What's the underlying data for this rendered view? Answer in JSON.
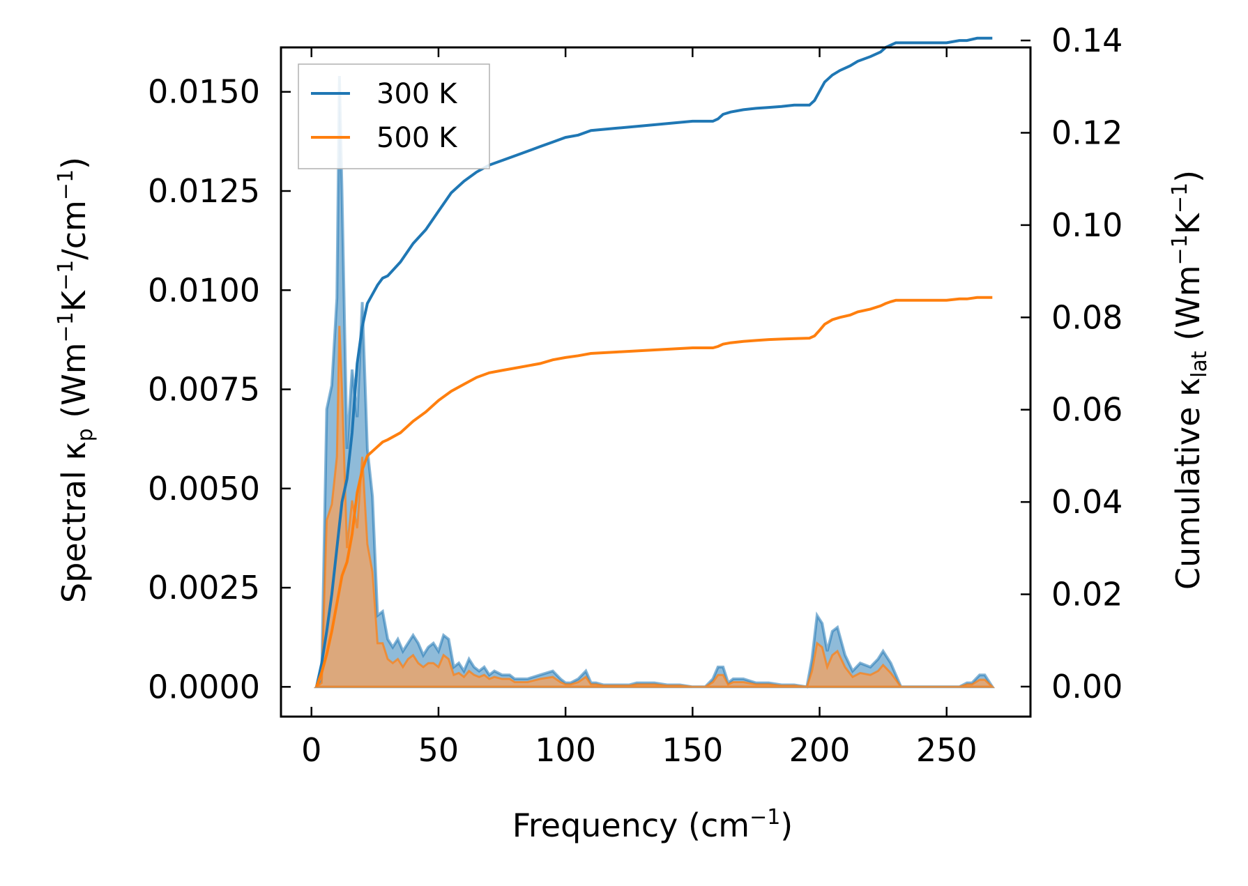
{
  "chart_data": {
    "type": "line",
    "xlabel": {
      "main": "Frequency (cm",
      "sup": "−1",
      "tail": ")"
    },
    "ylabel_left": {
      "main": "Spectral κ",
      "sub": "p",
      "a": " (Wm",
      "s1": "−1",
      "b": "K",
      "s2": "−1",
      "c": "/cm",
      "s3": "−1",
      "d": ")"
    },
    "ylabel_right": {
      "main": "Cumulative κ",
      "sub": "lat",
      "a": " (Wm",
      "s1": "−1",
      "b": "K",
      "s2": "−1",
      "c": ")"
    },
    "xlim": [
      -12,
      283
    ],
    "ylim_left": [
      -0.00075,
      0.01612
    ],
    "ylim_right": [
      -0.0065,
      0.1385
    ],
    "xticks": [
      0,
      50,
      100,
      150,
      200,
      250
    ],
    "xtick_labels": [
      "0",
      "50",
      "100",
      "150",
      "200",
      "250"
    ],
    "yticks_left": [
      0,
      0.0025,
      0.005,
      0.0075,
      0.01,
      0.0125,
      0.015
    ],
    "ytick_labels_left": [
      "0.0000",
      "0.0025",
      "0.0050",
      "0.0075",
      "0.0100",
      "0.0125",
      "0.0150"
    ],
    "yticks_right": [
      0,
      0.02,
      0.04,
      0.06,
      0.08,
      0.1,
      0.12,
      0.14
    ],
    "ytick_labels_right": [
      "0.00",
      "0.02",
      "0.04",
      "0.06",
      "0.08",
      "0.10",
      "0.12",
      "0.14"
    ],
    "legend": [
      "300 K",
      "500 K"
    ],
    "colors": {
      "blue": "#1f77b4",
      "orange": "#ff7f0e",
      "blue_fill": "#1f77b4",
      "orange_fill": "#f5a15c"
    },
    "spectral": {
      "x": [
        2,
        4,
        6,
        8,
        10,
        11,
        12,
        14,
        16,
        18,
        20,
        22,
        24,
        26,
        28,
        30,
        32,
        34,
        36,
        38,
        40,
        42,
        44,
        46,
        48,
        50,
        52,
        54,
        56,
        58,
        60,
        62,
        64,
        66,
        68,
        70,
        72,
        75,
        78,
        80,
        85,
        90,
        95,
        98,
        100,
        102,
        105,
        108,
        110,
        112,
        115,
        120,
        125,
        128,
        130,
        135,
        140,
        145,
        150,
        155,
        158,
        160,
        162,
        164,
        166,
        170,
        175,
        178,
        180,
        185,
        190,
        195,
        197,
        199,
        201,
        203,
        205,
        207,
        210,
        213,
        216,
        220,
        223,
        225,
        228,
        230,
        232,
        240,
        250,
        255,
        258,
        260,
        263,
        265,
        268
      ],
      "series_300": [
        0,
        0.0002,
        0.007,
        0.0076,
        0.0098,
        0.0154,
        0.0125,
        0.006,
        0.008,
        0.0068,
        0.0097,
        0.006,
        0.0048,
        0.0018,
        0.0019,
        0.0012,
        0.001,
        0.0012,
        0.0009,
        0.0011,
        0.0013,
        0.0011,
        0.0008,
        0.001,
        0.0011,
        0.0009,
        0.0013,
        0.0012,
        0.0005,
        0.0006,
        0.0004,
        0.0007,
        0.0005,
        0.0004,
        0.0005,
        0.0003,
        0.0004,
        0.0003,
        0.0003,
        0.0002,
        0.0002,
        0.0003,
        0.0004,
        0.0002,
        0.0001,
        0.0001,
        0.0002,
        0.0004,
        0.0001,
        0.0001,
        5e-05,
        5e-05,
        5e-05,
        0.0001,
        0.0001,
        0.0001,
        5e-05,
        5e-05,
        0,
        0,
        0.0002,
        0.0005,
        0.0005,
        0.0001,
        0.0002,
        0.0002,
        0.0001,
        0.0001,
        0.0001,
        5e-05,
        5e-05,
        0,
        0.0007,
        0.0018,
        0.0016,
        0.0009,
        0.0014,
        0.0015,
        0.0008,
        0.0004,
        0.0006,
        0.0005,
        0.0007,
        0.0009,
        0.0006,
        0.0003,
        0,
        0,
        0,
        0,
        0.0001,
        0.0001,
        0.0003,
        0.0003,
        0
      ],
      "series_500": [
        0,
        0.0001,
        0.0042,
        0.0046,
        0.0058,
        0.0091,
        0.0075,
        0.0035,
        0.0047,
        0.004,
        0.0058,
        0.0036,
        0.0029,
        0.0011,
        0.0011,
        0.0007,
        0.0006,
        0.0007,
        0.0005,
        0.0007,
        0.0008,
        0.0006,
        0.0005,
        0.0006,
        0.0006,
        0.0005,
        0.0008,
        0.0007,
        0.0003,
        0.00035,
        0.00025,
        0.0004,
        0.0003,
        0.00025,
        0.0003,
        0.0002,
        0.00025,
        0.0002,
        0.0002,
        0.00012,
        0.00012,
        0.0002,
        0.00025,
        0.00012,
        6e-05,
        6e-05,
        0.00012,
        0.00025,
        6e-05,
        6e-05,
        3e-05,
        3e-05,
        3e-05,
        6e-05,
        6e-05,
        6e-05,
        3e-05,
        3e-05,
        0,
        0,
        0.00012,
        0.0003,
        0.0003,
        6e-05,
        0.00012,
        0.00012,
        6e-05,
        6e-05,
        6e-05,
        3e-05,
        3e-05,
        0,
        0.0004,
        0.0011,
        0.001,
        0.0005,
        0.0008,
        0.0009,
        0.0005,
        0.00025,
        0.00035,
        0.0003,
        0.0004,
        0.00055,
        0.00035,
        0.00018,
        0,
        0,
        0,
        0,
        6e-05,
        6e-05,
        0.00018,
        0.00018,
        0
      ]
    },
    "cumulative": {
      "x": [
        2,
        4,
        6,
        8,
        10,
        12,
        14,
        16,
        18,
        20,
        22,
        24,
        26,
        28,
        30,
        35,
        40,
        45,
        50,
        55,
        60,
        65,
        70,
        75,
        80,
        85,
        90,
        95,
        100,
        105,
        110,
        120,
        130,
        140,
        150,
        155,
        158,
        160,
        162,
        165,
        170,
        175,
        180,
        185,
        190,
        196,
        198,
        200,
        202,
        205,
        208,
        212,
        215,
        220,
        224,
        226,
        228,
        230,
        235,
        240,
        250,
        255,
        258,
        262,
        268
      ],
      "series_300": [
        0,
        0.005,
        0.012,
        0.02,
        0.03,
        0.04,
        0.045,
        0.055,
        0.07,
        0.078,
        0.083,
        0.085,
        0.087,
        0.0885,
        0.089,
        0.092,
        0.096,
        0.099,
        0.103,
        0.107,
        0.1095,
        0.1115,
        0.113,
        0.114,
        0.115,
        0.116,
        0.117,
        0.118,
        0.119,
        0.1195,
        0.1205,
        0.121,
        0.1215,
        0.122,
        0.1225,
        0.1225,
        0.1225,
        0.123,
        0.124,
        0.1245,
        0.125,
        0.1253,
        0.1255,
        0.1257,
        0.126,
        0.126,
        0.127,
        0.129,
        0.131,
        0.1325,
        0.1335,
        0.1345,
        0.1355,
        0.1365,
        0.1375,
        0.1385,
        0.139,
        0.1395,
        0.1395,
        0.1395,
        0.1395,
        0.14,
        0.14,
        0.1405,
        0.1405
      ],
      "series_500": [
        0,
        0.003,
        0.007,
        0.012,
        0.018,
        0.024,
        0.027,
        0.033,
        0.042,
        0.047,
        0.05,
        0.051,
        0.052,
        0.053,
        0.0535,
        0.055,
        0.0575,
        0.0595,
        0.062,
        0.064,
        0.0655,
        0.067,
        0.068,
        0.0685,
        0.069,
        0.0695,
        0.07,
        0.0708,
        0.0713,
        0.0717,
        0.0722,
        0.0725,
        0.0728,
        0.0731,
        0.0734,
        0.0734,
        0.0734,
        0.0737,
        0.0742,
        0.0745,
        0.0748,
        0.075,
        0.0752,
        0.0753,
        0.0754,
        0.0755,
        0.076,
        0.0772,
        0.0785,
        0.0795,
        0.08,
        0.0805,
        0.0812,
        0.0818,
        0.0825,
        0.083,
        0.0834,
        0.0837,
        0.0837,
        0.0837,
        0.0837,
        0.084,
        0.084,
        0.0843,
        0.0843
      ]
    }
  }
}
